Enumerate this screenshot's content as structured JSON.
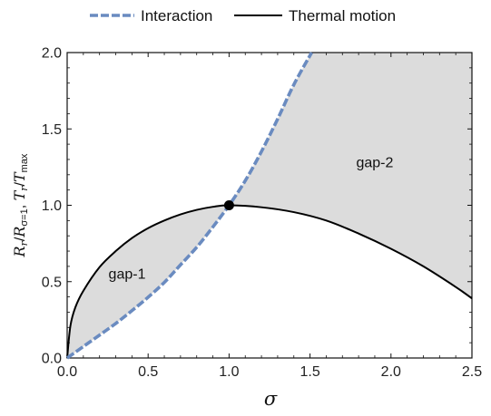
{
  "chart_data": {
    "type": "line",
    "xlabel": "σ",
    "ylabel": {
      "parts": [
        {
          "text": "R",
          "italic": true
        },
        {
          "text": "r",
          "italic": true,
          "sub": true
        },
        {
          "text": "/",
          "italic": false
        },
        {
          "text": "R",
          "italic": true
        },
        {
          "text": "σ=1",
          "italic": false,
          "sub": true
        },
        {
          "text": ",  ",
          "italic": false
        },
        {
          "text": "T",
          "italic": true
        },
        {
          "text": "r",
          "italic": true,
          "sub": true
        },
        {
          "text": "/",
          "italic": false
        },
        {
          "text": "T",
          "italic": true
        },
        {
          "text": "max",
          "italic": false,
          "sub": true
        }
      ]
    },
    "xlim": [
      0,
      2.5
    ],
    "ylim": [
      0,
      2.0
    ],
    "xticks": [
      "0.0",
      "0.5",
      "1.0",
      "1.5",
      "2.0",
      "2.5"
    ],
    "yticks": [
      "0.0",
      "0.5",
      "1.0",
      "1.5",
      "2.0"
    ],
    "legend_position": "top",
    "grid": false,
    "series": [
      {
        "name": "Interaction",
        "style": "dashed",
        "color": "#6a8bc0",
        "x": [
          0.0,
          0.1,
          0.2,
          0.3,
          0.4,
          0.5,
          0.6,
          0.7,
          0.8,
          0.9,
          1.0,
          1.1,
          1.2,
          1.3,
          1.4,
          1.51
        ],
        "y": [
          0.0,
          0.075,
          0.15,
          0.226,
          0.31,
          0.398,
          0.495,
          0.61,
          0.725,
          0.858,
          1.0,
          1.161,
          1.352,
          1.565,
          1.79,
          2.0
        ]
      },
      {
        "name": "Thermal motion",
        "style": "solid",
        "color": "#000000",
        "x": [
          0.0,
          0.02,
          0.05,
          0.1,
          0.2,
          0.3,
          0.4,
          0.5,
          0.6,
          0.7,
          0.8,
          0.9,
          1.0,
          1.2,
          1.4,
          1.6,
          1.8,
          2.0,
          2.2,
          2.4,
          2.5
        ],
        "y": [
          0.0,
          0.21,
          0.33,
          0.44,
          0.595,
          0.7,
          0.785,
          0.85,
          0.9,
          0.94,
          0.97,
          0.99,
          1.0,
          0.987,
          0.955,
          0.9,
          0.815,
          0.715,
          0.6,
          0.465,
          0.39
        ]
      }
    ],
    "regions": [
      {
        "label": "gap-1",
        "x": 0.37,
        "y": 0.52,
        "fill": "#dcdcdc"
      },
      {
        "label": "gap-2",
        "x": 1.9,
        "y": 1.25,
        "fill": "#dcdcdc"
      }
    ],
    "points": [
      {
        "x": 1.0,
        "y": 1.0,
        "color": "#000000"
      }
    ],
    "colors": {
      "fill": "#dcdcdc",
      "interaction": "#6a8bc0",
      "thermal": "#000000"
    }
  }
}
